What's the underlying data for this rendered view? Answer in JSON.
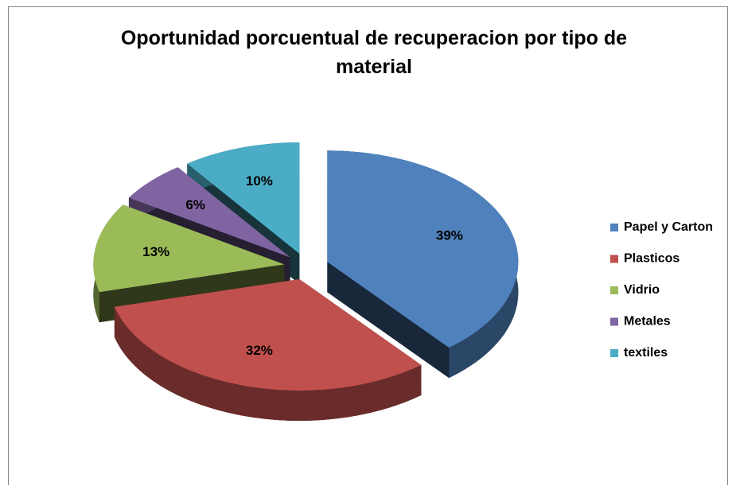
{
  "chart_data": {
    "type": "pie3d",
    "title": "Oportunidad porcuentual de recuperacion por tipo de material",
    "categories": [
      "Papel y Carton",
      "Plasticos",
      "Vidrio",
      "Metales",
      "textiles"
    ],
    "values": [
      39,
      32,
      13,
      6,
      10
    ],
    "value_labels": [
      "39%",
      "32%",
      "13%",
      "6%",
      "10%"
    ],
    "colors": [
      "#4f81bd",
      "#c0504d",
      "#9bbb59",
      "#8064a2",
      "#4bacc6"
    ],
    "legend": "right"
  }
}
